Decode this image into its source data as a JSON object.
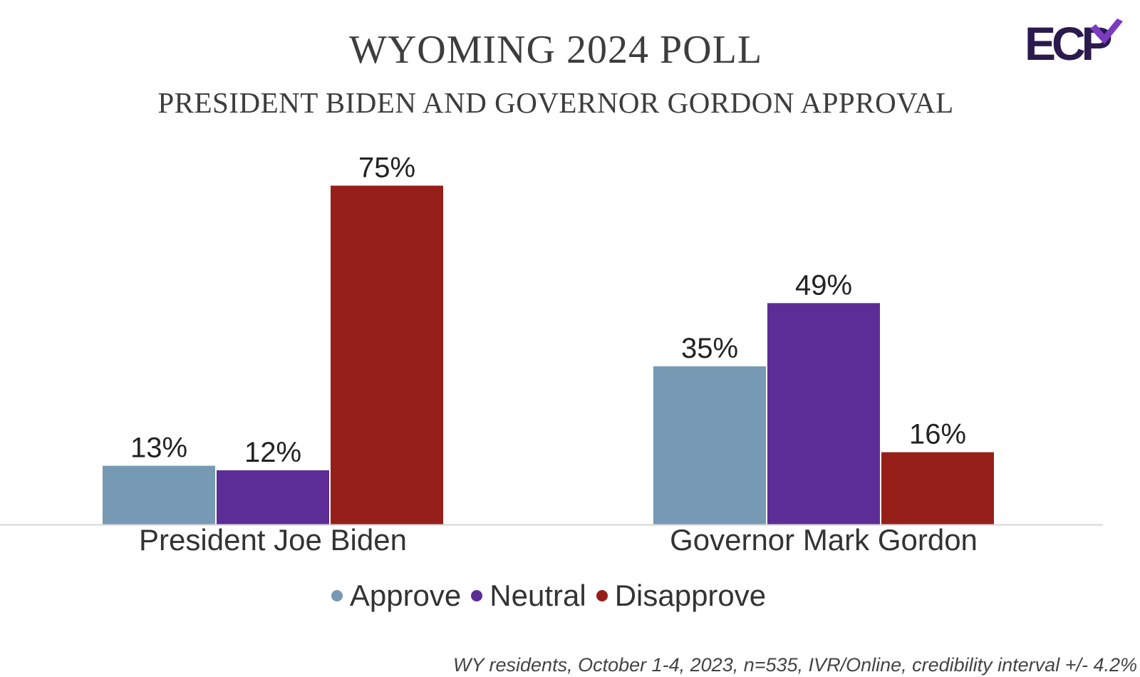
{
  "header": {
    "title": "WYOMING 2024 POLL",
    "subtitle": "PRESIDENT BIDEN AND GOVERNOR GORDON APPROVAL"
  },
  "logo": {
    "text": "ECP",
    "icon": "ecp-logo-icon",
    "color_dark": "#2b1a4e",
    "color_accent": "#7a3bbf"
  },
  "chart_data": {
    "type": "bar",
    "title": "WYOMING 2024 POLL",
    "subtitle": "PRESIDENT BIDEN AND GOVERNOR GORDON APPROVAL",
    "categories": [
      "President Joe Biden",
      "Governor Mark Gordon"
    ],
    "series": [
      {
        "name": "Approve",
        "values": [
          13,
          35
        ],
        "color": "#7699b4"
      },
      {
        "name": "Neutral",
        "values": [
          12,
          49
        ],
        "color": "#5c2d96"
      },
      {
        "name": "Disapprove",
        "values": [
          75,
          16
        ],
        "color": "#962019"
      }
    ],
    "value_suffix": "%",
    "xlabel": "",
    "ylabel": "",
    "ylim": [
      0,
      80
    ],
    "grid": false,
    "legend_position": "bottom"
  },
  "footnote": "WY residents, October 1-4, 2023, n=535, IVR/Online, credibility interval +/- 4.2%"
}
